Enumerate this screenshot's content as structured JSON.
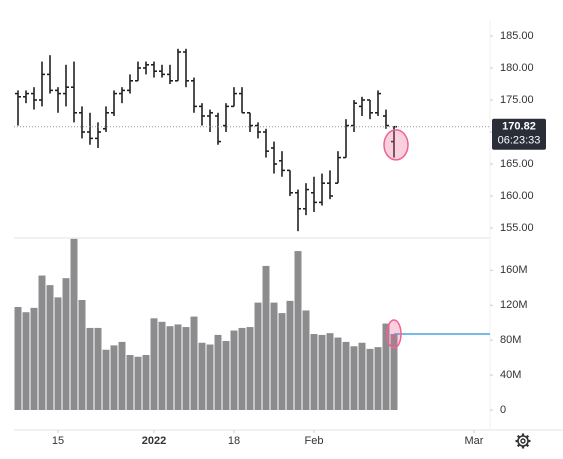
{
  "chart_data": {
    "type": "ohlc-volume",
    "open": [
      176,
      175.5,
      176,
      175,
      179,
      176.5,
      176,
      177,
      173,
      170,
      169,
      170.5,
      173,
      176,
      176.5,
      178,
      180,
      180.5,
      179.5,
      179,
      178,
      182.5,
      178,
      174,
      172.5,
      172.5,
      171,
      174,
      176,
      173,
      171,
      170,
      167.5,
      165.5,
      164,
      160.5,
      158,
      160.5,
      159,
      162,
      162,
      166,
      171,
      174,
      175,
      173,
      172.5,
      168.5
    ],
    "high": [
      176.5,
      176.5,
      177,
      181,
      182,
      177,
      180.5,
      181,
      174,
      173,
      171.5,
      174,
      176.5,
      177,
      179,
      181,
      181,
      181,
      180.5,
      180.5,
      183,
      183,
      178.5,
      174.5,
      173.5,
      173,
      174.5,
      177,
      177,
      173,
      171.5,
      170.5,
      168.5,
      167,
      164,
      161,
      162,
      163,
      163.5,
      164,
      167,
      172,
      175,
      175.5,
      175,
      176.5,
      173.5,
      170.9
    ],
    "low": [
      171,
      174.5,
      173.5,
      174,
      176,
      173,
      174,
      171.5,
      169,
      168,
      167.5,
      170,
      172.5,
      174.5,
      176,
      178,
      179,
      178.5,
      178.5,
      177.5,
      178,
      177,
      173,
      171,
      170,
      168,
      170,
      174,
      173,
      170,
      169,
      166,
      163.5,
      163,
      160,
      154.5,
      157,
      157.5,
      158.5,
      159.5,
      162,
      166,
      170,
      172.5,
      172,
      172.5,
      170.5,
      166
    ],
    "close": [
      175.5,
      176,
      175,
      179,
      176.5,
      176,
      177,
      173,
      170,
      169,
      170,
      173,
      176,
      176.5,
      178,
      180,
      180.5,
      179.5,
      179,
      178,
      182.5,
      178,
      174,
      172.5,
      173,
      168.5,
      174,
      176,
      173,
      171,
      170,
      167,
      165,
      164,
      160.5,
      158,
      161,
      159,
      162,
      160,
      166,
      171,
      174.5,
      175,
      173,
      176,
      171,
      170.82
    ],
    "volume": [
      118,
      112,
      117,
      154,
      143,
      129,
      151,
      196,
      126,
      94,
      94,
      69,
      74,
      78,
      63,
      61,
      63,
      105,
      101,
      96,
      98,
      95,
      107,
      77,
      75,
      86,
      79,
      91,
      94,
      95,
      123,
      165,
      123,
      111,
      125,
      182,
      114,
      87,
      86,
      88,
      83,
      78,
      73,
      77,
      70,
      72,
      99,
      87
    ],
    "ylim": [
      153.9,
      187.5
    ],
    "yticks": [
      {
        "value": 155,
        "label": "155.00"
      },
      {
        "value": 160,
        "label": "160.00"
      },
      {
        "value": 165,
        "label": "165.00"
      },
      {
        "value": 170,
        "label": "170.00"
      },
      {
        "value": 175,
        "label": "175.00"
      },
      {
        "value": 180,
        "label": "180.00"
      },
      {
        "value": 185,
        "label": "185.00"
      }
    ],
    "vlim": [
      0,
      197
    ],
    "vticks": [
      0,
      {
        "value": 40,
        "label": "40M"
      },
      {
        "value": 80,
        "label": "80M"
      },
      {
        "value": 120,
        "label": "120M"
      },
      {
        "value": 160,
        "label": "160M"
      }
    ],
    "xlim": [
      -0.5,
      59
    ],
    "xticks": [
      {
        "value": 5,
        "label": "15"
      },
      {
        "value": 17,
        "label": "2022"
      },
      {
        "value": 27,
        "label": "18"
      },
      {
        "value": 37,
        "label": "Feb"
      },
      {
        "value": 57,
        "label": "Mar"
      }
    ],
    "last_price": 170.82,
    "countdown": "06:23:33",
    "bar_color": "#222222",
    "volume_color": "#8c8c8e",
    "volume_line_color": "#4aa3df",
    "highlight_color": "#f06292"
  }
}
